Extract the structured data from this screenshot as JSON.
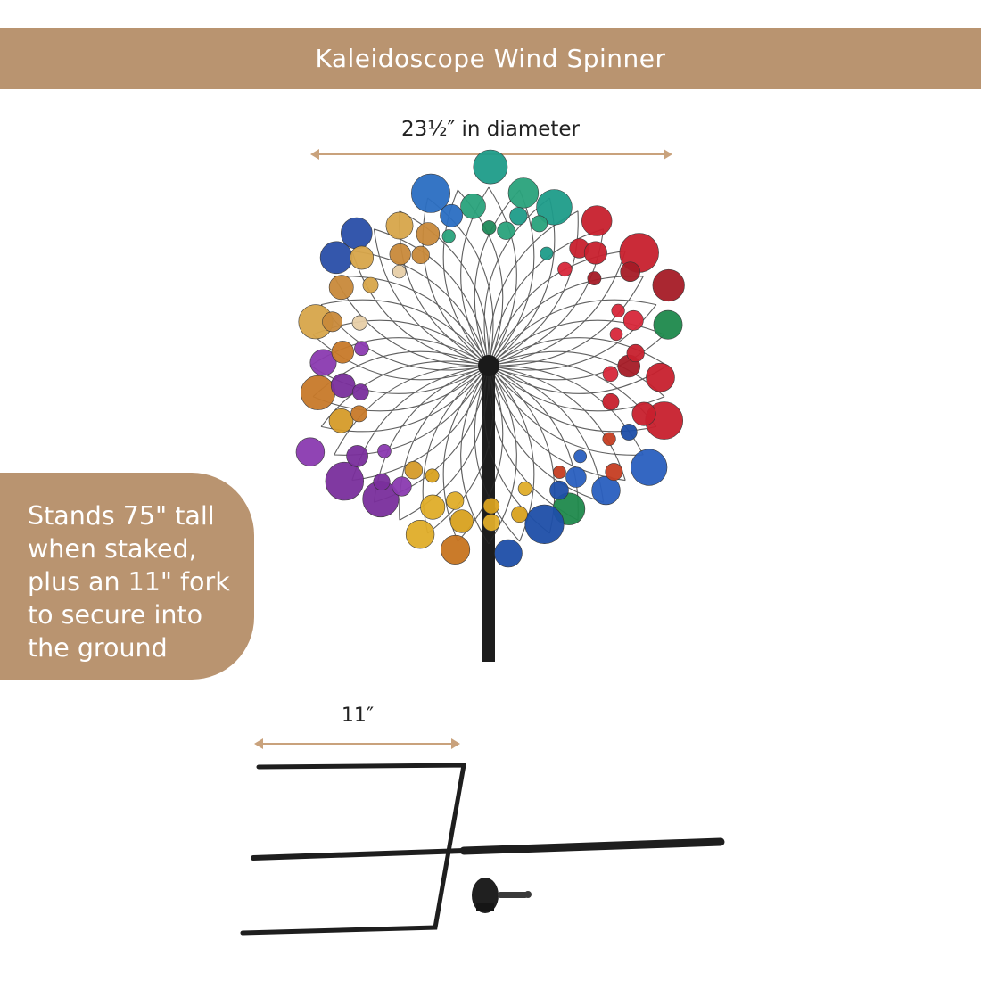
{
  "header": {
    "title": "Kaleidoscope Wind Spinner",
    "background_color": "#b99470"
  },
  "dimensions": {
    "diameter_label": "23½″ in diameter",
    "fork_length_label": "11″",
    "arrow_color": "#c9a27c"
  },
  "callout": {
    "text": "Stands 75\" tall when staked, plus an 11\" fork to secure into the ground",
    "background_color": "#b99470"
  }
}
